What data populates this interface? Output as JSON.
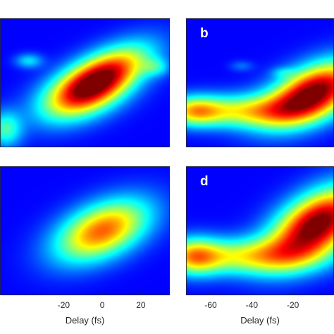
{
  "chart_data": [
    {
      "panel": "a",
      "type": "heatmap",
      "letter": "",
      "xlim": [
        -53,
        35
      ],
      "xticks": [],
      "xlabel": "",
      "blobs": [
        {
          "x": 0,
          "y": 0.55,
          "sx": 17,
          "sy": 0.17,
          "rho": 0.62,
          "amp": 0.83
        },
        {
          "x": -10,
          "y": 0.4,
          "sx": 16,
          "sy": 0.15,
          "rho": 0.4,
          "amp": 0.45
        },
        {
          "x": -50,
          "y": 0.14,
          "sx": 6,
          "sy": 0.1,
          "rho": 0,
          "amp": 0.35
        },
        {
          "x": -38,
          "y": 0.67,
          "sx": 5,
          "sy": 0.04,
          "rho": 0,
          "amp": 0.25
        },
        {
          "x": 28,
          "y": 0.62,
          "sx": 5,
          "sy": 0.05,
          "rho": 0,
          "amp": 0.2
        }
      ]
    },
    {
      "panel": "b",
      "type": "heatmap",
      "letter": "b",
      "xlim": [
        -72,
        0
      ],
      "xticks": [],
      "xlabel": "",
      "blobs": [
        {
          "x": -10,
          "y": 0.42,
          "sx": 16,
          "sy": 0.17,
          "rho": 0.5,
          "amp": 1.05
        },
        {
          "x": -45,
          "y": 0.28,
          "sx": 20,
          "sy": 0.09,
          "rho": 0,
          "amp": 0.5
        },
        {
          "x": -68,
          "y": 0.28,
          "sx": 9,
          "sy": 0.08,
          "rho": 0,
          "amp": 0.45
        },
        {
          "x": -45,
          "y": 0.63,
          "sx": 4,
          "sy": 0.03,
          "rho": 0,
          "amp": 0.12
        },
        {
          "x": -25,
          "y": 0.58,
          "sx": 4,
          "sy": 0.03,
          "rho": 0,
          "amp": 0.12
        }
      ]
    },
    {
      "panel": "c",
      "type": "heatmap",
      "letter": "",
      "xlim": [
        -53,
        35
      ],
      "xticks": [
        -20,
        0,
        20
      ],
      "xlabel": "Delay (fs)",
      "blobs": [
        {
          "x": 0,
          "y": 0.5,
          "sx": 17,
          "sy": 0.17,
          "rho": 0.45,
          "amp": 0.75
        }
      ]
    },
    {
      "panel": "d",
      "type": "heatmap",
      "letter": "d",
      "xlim": [
        -72,
        0
      ],
      "xticks": [
        -60,
        -40,
        -20
      ],
      "xlabel": "Delay (fs)",
      "blobs": [
        {
          "x": -8,
          "y": 0.55,
          "sx": 16,
          "sy": 0.2,
          "rho": 0.5,
          "amp": 1.05
        },
        {
          "x": -42,
          "y": 0.3,
          "sx": 24,
          "sy": 0.1,
          "rho": 0,
          "amp": 0.5
        },
        {
          "x": -68,
          "y": 0.3,
          "sx": 9,
          "sy": 0.1,
          "rho": 0,
          "amp": 0.48
        }
      ]
    }
  ]
}
